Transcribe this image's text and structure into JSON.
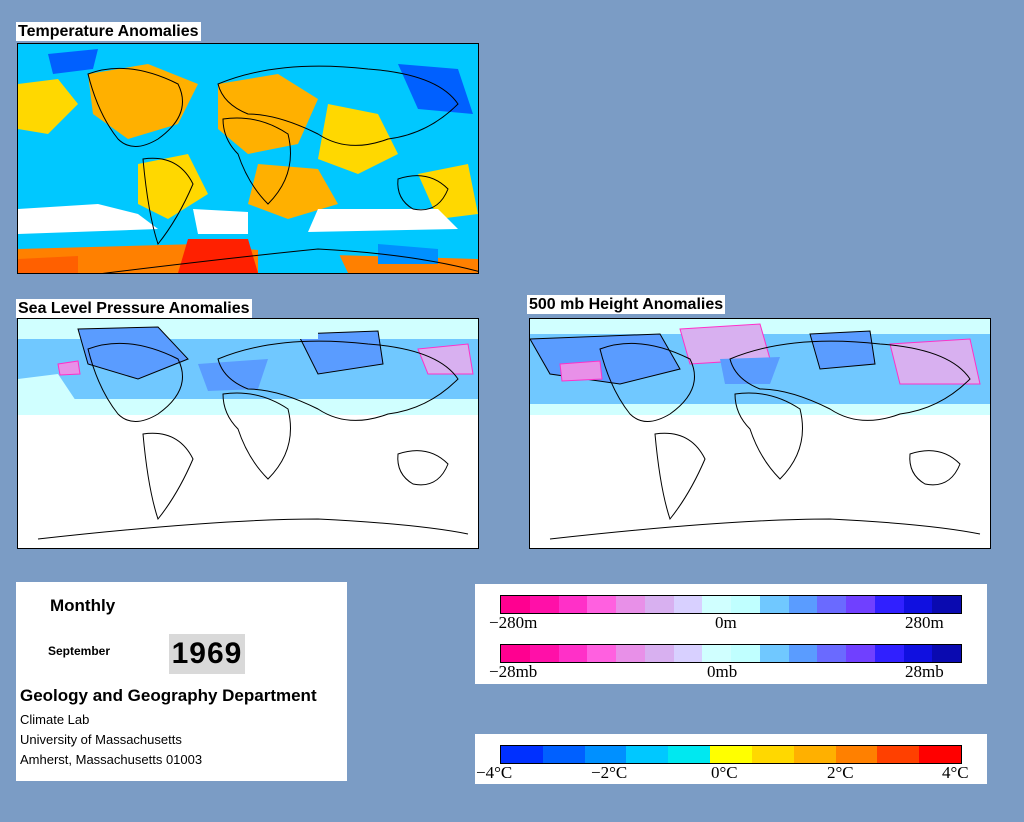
{
  "panels": {
    "temperature": {
      "title": "Temperature Anomalies"
    },
    "slp": {
      "title": "Sea Level Pressure Anomalies"
    },
    "height500": {
      "title": "500 mb Height Anomalies"
    }
  },
  "info": {
    "period": "Monthly",
    "month": "September",
    "year": "1969",
    "department": "Geology and Geography Department",
    "lines": [
      "Climate Lab",
      "University of Massachusetts",
      "Amherst, Massachusetts 01003"
    ]
  },
  "legends": {
    "pressure_colors": [
      "#ff0090",
      "#ff10a8",
      "#ff30c8",
      "#ff60e0",
      "#e890e8",
      "#d8b0f0",
      "#d8d0ff",
      "#d0ffff",
      "#c0ffff",
      "#70c8ff",
      "#5a9cff",
      "#6a6aff",
      "#7040ff",
      "#3020ff",
      "#1010e0",
      "#0a0ab0"
    ],
    "height_labels": [
      "−280m",
      "0m",
      "280m"
    ],
    "slp_labels": [
      "−28mb",
      "0mb",
      "28mb"
    ],
    "temp_colors": [
      "#0030ff",
      "#0060ff",
      "#0090ff",
      "#00c8ff",
      "#00e8f0",
      "#ffff00",
      "#ffd800",
      "#ffb000",
      "#ff8000",
      "#ff4000",
      "#ff0000"
    ],
    "temp_labels": [
      "−4°C",
      "−2°C",
      "0°C",
      "2°C",
      "4°C"
    ]
  },
  "colors": {
    "background": "#7b9cc5",
    "land_outline": "#000000"
  }
}
